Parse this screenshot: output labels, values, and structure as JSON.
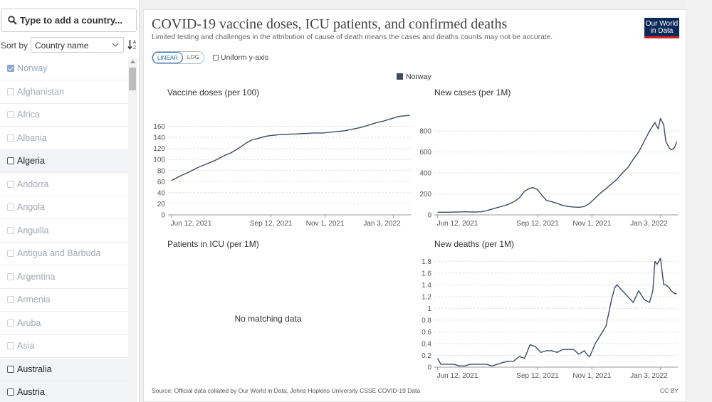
{
  "sidebar": {
    "search_placeholder": "Type to add a country...",
    "sort_label": "Sort by",
    "sort_value": "Country name",
    "countries": [
      {
        "name": "Norway",
        "state": "selected"
      },
      {
        "name": "Afghanistan",
        "state": "faded"
      },
      {
        "name": "Africa",
        "state": "faded"
      },
      {
        "name": "Albania",
        "state": "faded"
      },
      {
        "name": "Algeria",
        "state": "available"
      },
      {
        "name": "Andorra",
        "state": "faded"
      },
      {
        "name": "Angola",
        "state": "faded"
      },
      {
        "name": "Anguilla",
        "state": "faded"
      },
      {
        "name": "Antigua and Barbuda",
        "state": "faded"
      },
      {
        "name": "Argentina",
        "state": "faded"
      },
      {
        "name": "Armenia",
        "state": "faded"
      },
      {
        "name": "Aruba",
        "state": "faded"
      },
      {
        "name": "Asia",
        "state": "faded"
      },
      {
        "name": "Australia",
        "state": "available"
      },
      {
        "name": "Austria",
        "state": "available"
      }
    ]
  },
  "header": {
    "title": "COVID-19 vaccine doses, ICU patients, and confirmed deaths",
    "subtitle": "Limited testing and challenges in the attribution of cause of death means the cases and deaths counts may not be accurate.",
    "logo_line1": "Our World",
    "logo_line2": "in Data",
    "scale_linear": "LINEAR",
    "scale_log": "LOG",
    "uniform_axis": "Uniform y-axis"
  },
  "legend": {
    "label": "Norway",
    "color": "#3e4a60"
  },
  "footer": {
    "source": "Source: Official data collated by Our World in Data, Johns Hopkins University CSSE COVID-19 Data",
    "license": "CC BY"
  },
  "chart_data": [
    {
      "type": "line",
      "title": "Vaccine doses (per 100)",
      "series": [
        {
          "name": "Norway",
          "x": [
            0,
            5,
            10,
            15,
            20,
            25,
            30,
            35,
            40,
            45,
            50,
            55,
            60,
            65,
            70,
            75,
            80,
            85,
            90,
            95,
            100,
            105,
            110,
            115,
            120,
            125,
            130,
            135,
            140,
            145,
            150,
            155,
            160,
            165,
            170,
            175,
            180,
            185,
            190,
            195,
            200,
            205,
            210,
            215,
            220
          ],
          "values": [
            62,
            67,
            72,
            76,
            81,
            86,
            90,
            94,
            98,
            103,
            108,
            112,
            118,
            124,
            131,
            136,
            138,
            141,
            143,
            144,
            145,
            145,
            146,
            146,
            147,
            147,
            148,
            148,
            148,
            149,
            150,
            151,
            152,
            154,
            156,
            158,
            161,
            164,
            167,
            169,
            172,
            175,
            178,
            179,
            180
          ]
        }
      ],
      "x_ticks": [
        {
          "x": 0,
          "label": "Jun 12, 2021"
        },
        {
          "x": 92,
          "label": "Sep 12, 2021"
        },
        {
          "x": 142,
          "label": "Nov 1, 2021"
        },
        {
          "x": 205,
          "label": "Jan 3, 2022"
        }
      ],
      "xlim": [
        -3,
        221
      ],
      "y_ticks": [
        0,
        20,
        40,
        60,
        80,
        100,
        120,
        140,
        160
      ],
      "ylim": [
        0,
        180
      ]
    },
    {
      "type": "line",
      "title": "New cases (per 1M)",
      "series": [
        {
          "name": "Norway",
          "x": [
            0,
            5,
            10,
            15,
            20,
            25,
            30,
            35,
            40,
            45,
            50,
            55,
            60,
            65,
            70,
            75,
            80,
            85,
            88,
            92,
            95,
            100,
            105,
            110,
            115,
            120,
            125,
            130,
            135,
            140,
            145,
            150,
            155,
            160,
            165,
            170,
            175,
            180,
            185,
            190,
            195,
            198,
            200,
            203,
            205,
            208,
            210,
            213,
            215,
            218,
            220
          ],
          "values": [
            25,
            25,
            25,
            27,
            28,
            30,
            28,
            27,
            30,
            40,
            55,
            70,
            85,
            100,
            125,
            160,
            225,
            255,
            260,
            240,
            200,
            140,
            125,
            110,
            90,
            80,
            75,
            72,
            80,
            110,
            160,
            210,
            250,
            295,
            340,
            400,
            450,
            530,
            600,
            700,
            800,
            850,
            880,
            820,
            920,
            860,
            700,
            640,
            620,
            640,
            700
          ]
        }
      ],
      "x_ticks": [
        {
          "x": 0,
          "label": "Jun 12, 2021"
        },
        {
          "x": 92,
          "label": "Sep 12, 2021"
        },
        {
          "x": 142,
          "label": "Nov 1, 2021"
        },
        {
          "x": 205,
          "label": "Jan 3, 2022"
        }
      ],
      "xlim": [
        -3,
        221
      ],
      "y_ticks": [
        0,
        200,
        400,
        600,
        800
      ],
      "ylim": [
        0,
        950
      ]
    },
    {
      "type": "line",
      "title": "Patients in ICU (per 1M)",
      "no_data_text": "No matching data",
      "series": []
    },
    {
      "type": "line",
      "title": "New deaths (per 1M)",
      "series": [
        {
          "name": "Norway",
          "x": [
            0,
            3,
            6,
            10,
            15,
            20,
            25,
            30,
            35,
            40,
            45,
            50,
            55,
            60,
            65,
            70,
            75,
            80,
            85,
            90,
            95,
            100,
            105,
            110,
            115,
            120,
            125,
            130,
            135,
            138,
            140,
            145,
            150,
            155,
            160,
            163,
            165,
            170,
            175,
            180,
            185,
            190,
            195,
            198,
            200,
            202,
            205,
            208,
            210,
            213,
            215,
            218,
            220
          ],
          "values": [
            0.15,
            0.05,
            0.05,
            0.05,
            0.05,
            0.02,
            0.02,
            0.05,
            0.05,
            0.05,
            0.05,
            0.02,
            0.05,
            0.08,
            0.1,
            0.1,
            0.18,
            0.15,
            0.38,
            0.35,
            0.25,
            0.28,
            0.28,
            0.25,
            0.3,
            0.3,
            0.3,
            0.22,
            0.28,
            0.2,
            0.18,
            0.4,
            0.55,
            0.7,
            1.15,
            1.35,
            1.4,
            1.3,
            1.2,
            1.1,
            1.3,
            1.15,
            1.1,
            1.3,
            1.8,
            1.75,
            1.85,
            1.4,
            1.4,
            1.35,
            1.3,
            1.25,
            1.25
          ]
        }
      ],
      "x_ticks": [
        {
          "x": 0,
          "label": "Jun 12, 2021"
        },
        {
          "x": 92,
          "label": "Sep 12, 2021"
        },
        {
          "x": 142,
          "label": "Nov 1, 2021"
        },
        {
          "x": 205,
          "label": "Jan 3, 2022"
        }
      ],
      "xlim": [
        -3,
        221
      ],
      "y_ticks": [
        0,
        0.2,
        0.4,
        0.6,
        0.8,
        1,
        1.2,
        1.4,
        1.6,
        1.8
      ],
      "ylim": [
        0,
        1.9
      ]
    }
  ]
}
